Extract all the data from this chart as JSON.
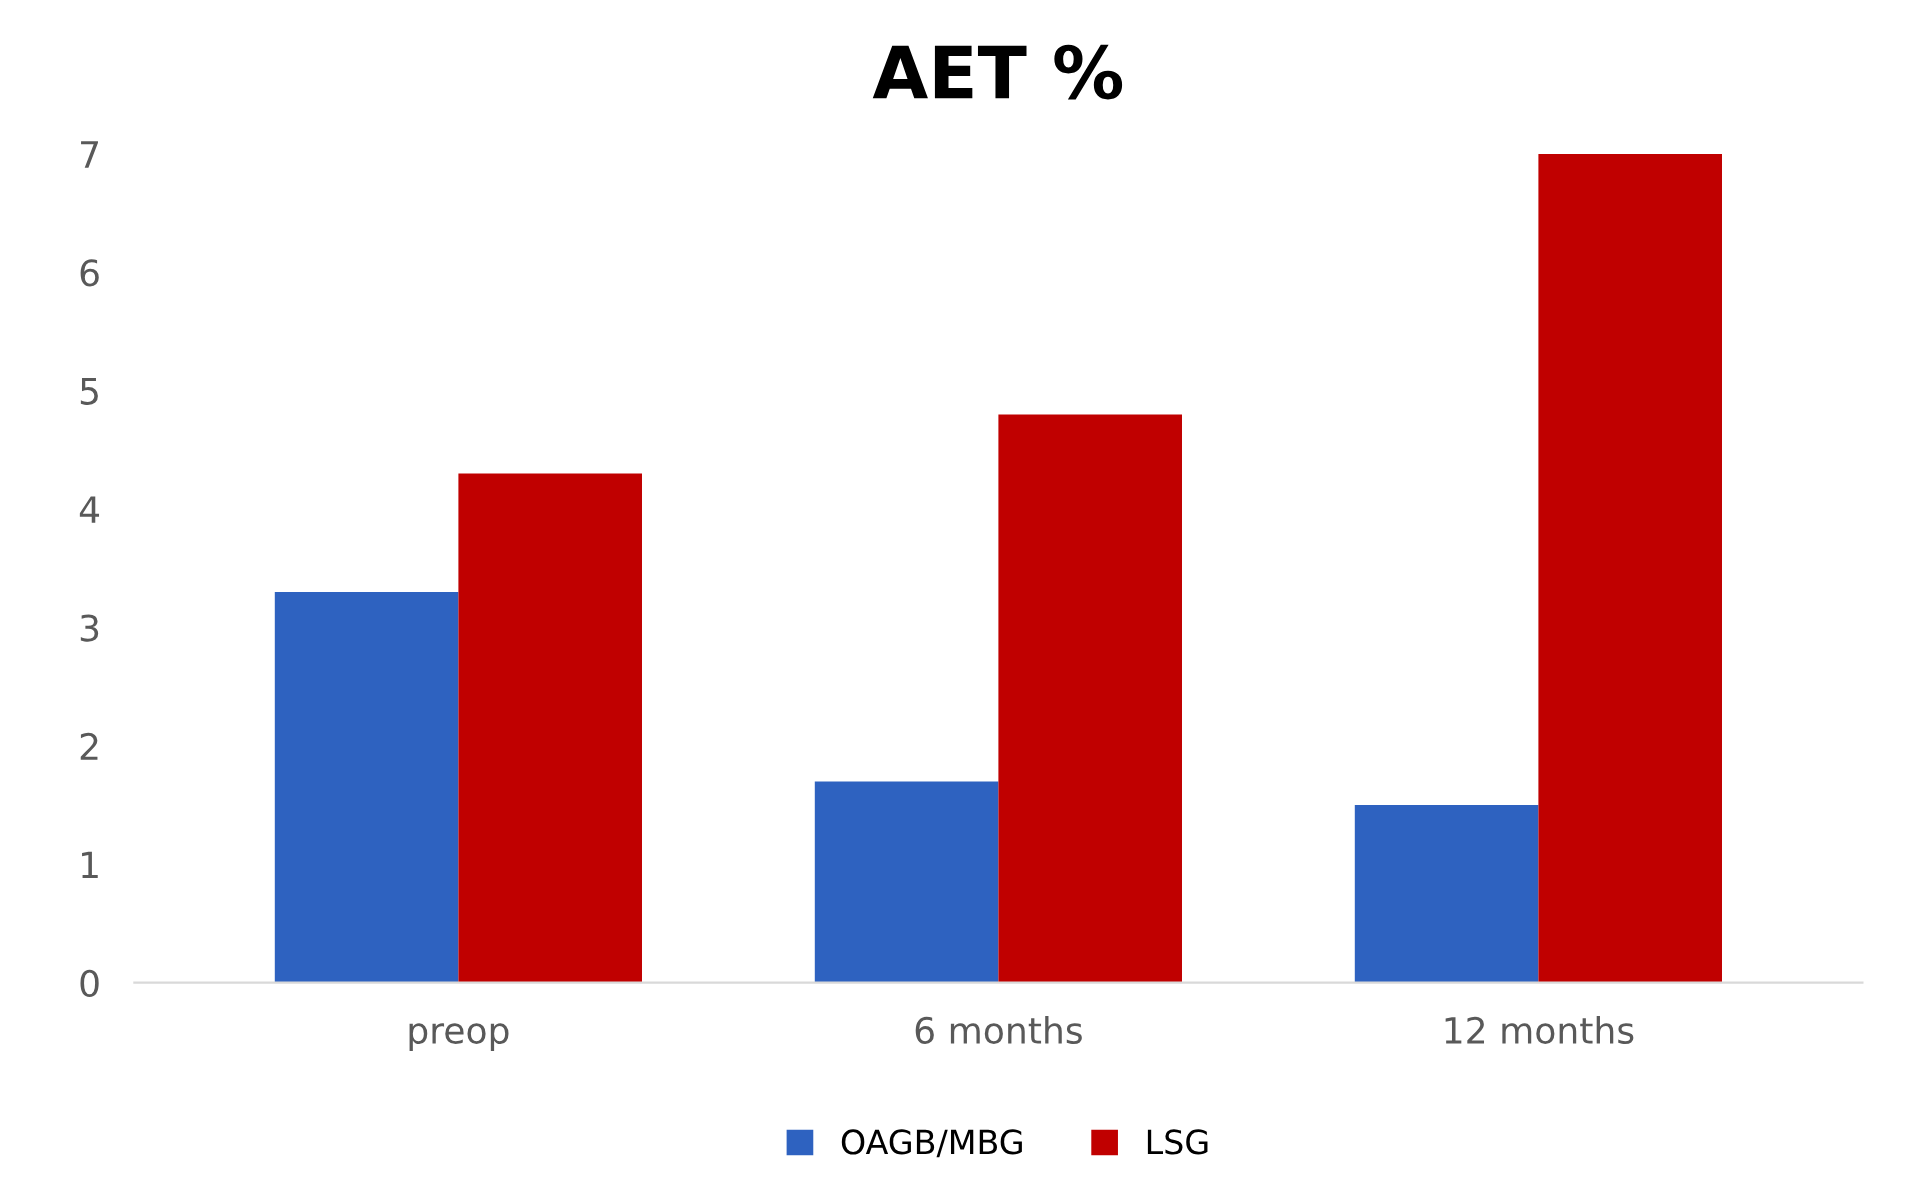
{
  "chart_data": {
    "type": "bar",
    "title": "AET %",
    "categories": [
      "preop",
      "6 months",
      "12 months"
    ],
    "series": [
      {
        "name": "OAGB/MBG",
        "color": "#2e62c0",
        "values": [
          3.3,
          1.7,
          1.5
        ]
      },
      {
        "name": "LSG",
        "color": "#c00000",
        "values": [
          4.3,
          4.8,
          7.0
        ]
      }
    ],
    "ylim": [
      0,
      7
    ],
    "yticks": [
      0,
      1,
      2,
      3,
      4,
      5,
      6,
      7
    ],
    "grid": false,
    "legend": "bottom"
  }
}
